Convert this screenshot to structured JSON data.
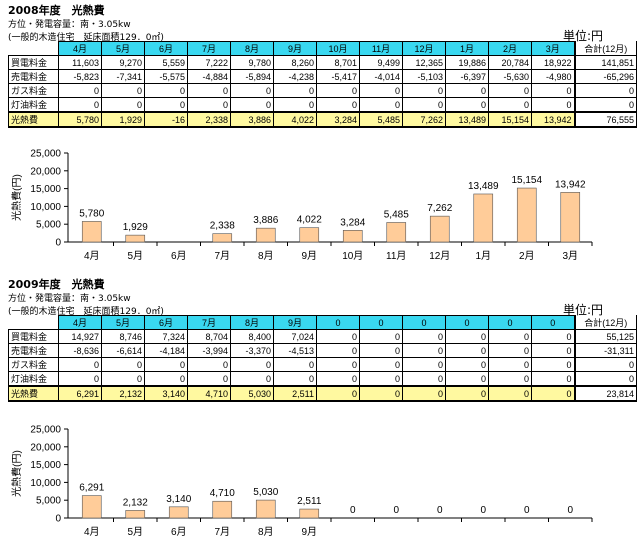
{
  "section_2008": {
    "title": "2008年度　光熱費",
    "subtitle1": "方位・発電容量：南・3.05kw",
    "subtitle2": "(一般的木造住宅　延床面積129．0㎡)",
    "unit": "単位:円",
    "total_header": "合計(12月)",
    "table": {
      "months": [
        "4月",
        "5月",
        "6月",
        "7月",
        "8月",
        "9月",
        "10月",
        "11月",
        "12月",
        "1月",
        "2月",
        "3月"
      ],
      "rows": [
        {
          "label": "買電料金",
          "values": [
            "11,603",
            "9,270",
            "5,559",
            "7,222",
            "9,780",
            "8,260",
            "8,701",
            "9,499",
            "12,365",
            "19,886",
            "20,784",
            "18,922"
          ],
          "total": "141,851"
        },
        {
          "label": "売電料金",
          "values": [
            "-5,823",
            "-7,341",
            "-5,575",
            "-4,884",
            "-5,894",
            "-4,238",
            "-5,417",
            "-4,014",
            "-5,103",
            "-6,397",
            "-5,630",
            "-4,980"
          ],
          "total": "-65,296"
        },
        {
          "label": "ガス料金",
          "values": [
            "0",
            "0",
            "0",
            "0",
            "0",
            "0",
            "0",
            "0",
            "0",
            "0",
            "0",
            "0"
          ],
          "total": "0"
        },
        {
          "label": "灯油料金",
          "values": [
            "0",
            "0",
            "0",
            "0",
            "0",
            "0",
            "0",
            "0",
            "0",
            "0",
            "0",
            "0"
          ],
          "total": "0"
        },
        {
          "label": "光熱費",
          "values": [
            "5,780",
            "1,929",
            "-16",
            "2,338",
            "3,886",
            "4,022",
            "3,284",
            "5,485",
            "7,262",
            "13,489",
            "15,154",
            "13,942"
          ],
          "total": "76,555"
        }
      ]
    }
  },
  "section_2009": {
    "title": "2009年度　光熱費",
    "subtitle1": "方位・発電容量：南・3.05kw",
    "subtitle2": "(一般的木造住宅　延床面積129．0㎡)",
    "unit": "単位:円",
    "total_header": "合計(12月)",
    "table": {
      "months": [
        "4月",
        "5月",
        "6月",
        "7月",
        "8月",
        "9月",
        "0",
        "0",
        "0",
        "0",
        "0",
        "0"
      ],
      "rows": [
        {
          "label": "買電料金",
          "values": [
            "14,927",
            "8,746",
            "7,324",
            "8,704",
            "8,400",
            "7,024",
            "0",
            "0",
            "0",
            "0",
            "0",
            "0"
          ],
          "total": "55,125"
        },
        {
          "label": "売電料金",
          "values": [
            "-8,636",
            "-6,614",
            "-4,184",
            "-3,994",
            "-3,370",
            "-4,513",
            "0",
            "0",
            "0",
            "0",
            "0",
            "0"
          ],
          "total": "-31,311"
        },
        {
          "label": "ガス料金",
          "values": [
            "0",
            "0",
            "0",
            "0",
            "0",
            "0",
            "0",
            "0",
            "0",
            "0",
            "0",
            "0"
          ],
          "total": "0"
        },
        {
          "label": "灯油料金",
          "values": [
            "0",
            "0",
            "0",
            "0",
            "0",
            "0",
            "0",
            "0",
            "0",
            "0",
            "0",
            "0"
          ],
          "total": "0"
        },
        {
          "label": "光熱費",
          "values": [
            "6,291",
            "2,132",
            "3,140",
            "4,710",
            "5,030",
            "2,511",
            "0",
            "0",
            "0",
            "0",
            "0",
            "0"
          ],
          "total": "23,814"
        }
      ]
    }
  },
  "chart_data": [
    {
      "type": "bar",
      "title": "",
      "xlabel": "",
      "ylabel": "光熱費(円)",
      "ylim": [
        0,
        25000
      ],
      "yticks": [
        0,
        5000,
        10000,
        15000,
        20000,
        25000
      ],
      "ytick_labels": [
        "0",
        "5,000",
        "10,000",
        "15,000",
        "20,000",
        "25,000"
      ],
      "grid": false,
      "bar_color": "#ffcc99",
      "categories": [
        "4月",
        "5月",
        "6月",
        "7月",
        "8月",
        "9月",
        "10月",
        "11月",
        "12月",
        "1月",
        "2月",
        "3月"
      ],
      "values": [
        5780,
        1929,
        -16,
        2338,
        3886,
        4022,
        3284,
        5485,
        7262,
        13489,
        15154,
        13942
      ],
      "data_labels": [
        "5,780",
        "1,929",
        "",
        "2,338",
        "3,886",
        "4,022",
        "3,284",
        "5,485",
        "7,262",
        "13,489",
        "15,154",
        "13,942"
      ]
    },
    {
      "type": "bar",
      "title": "",
      "xlabel": "",
      "ylabel": "光熱費(円)",
      "ylim": [
        0,
        25000
      ],
      "yticks": [
        0,
        5000,
        10000,
        15000,
        20000,
        25000
      ],
      "ytick_labels": [
        "0",
        "5,000",
        "10,000",
        "15,000",
        "20,000",
        "25,000"
      ],
      "grid": false,
      "bar_color": "#ffcc99",
      "categories": [
        "4月",
        "5月",
        "6月",
        "7月",
        "8月",
        "9月",
        "",
        "",
        "",
        "",
        "",
        ""
      ],
      "values": [
        6291,
        2132,
        3140,
        4710,
        5030,
        2511,
        0,
        0,
        0,
        0,
        0,
        0
      ],
      "data_labels": [
        "6,291",
        "2,132",
        "3,140",
        "4,710",
        "5,030",
        "2,511",
        "0",
        "0",
        "0",
        "0",
        "0",
        "0"
      ]
    }
  ]
}
